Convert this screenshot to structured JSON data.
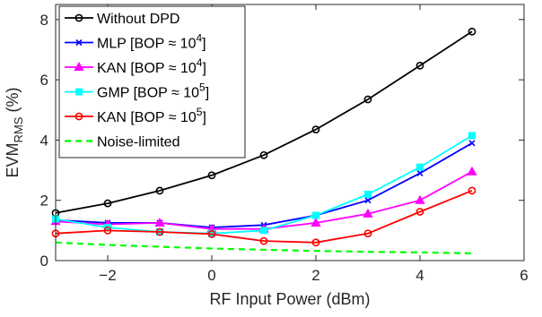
{
  "chart_data": {
    "type": "line",
    "xlabel": "RF Input Power (dBm)",
    "ylabel": {
      "main": "EVM",
      "sub": "RMS",
      "unit": " (%)"
    },
    "xlim": [
      -3,
      6
    ],
    "ylim": [
      0,
      8.5
    ],
    "xticks": [
      -2,
      0,
      2,
      4,
      6
    ],
    "yticks": [
      0,
      2,
      4,
      6,
      8
    ],
    "grid": false,
    "legend_position": "top-left",
    "x": [
      -3,
      -2,
      -1,
      0,
      1,
      2,
      3,
      4,
      5
    ],
    "series": [
      {
        "name": "Without DPD",
        "label_parts": [
          "Without DPD"
        ],
        "color": "#000000",
        "marker": "circle",
        "dashed": false,
        "values": [
          1.58,
          1.9,
          2.32,
          2.83,
          3.5,
          4.35,
          5.35,
          6.47,
          7.6
        ]
      },
      {
        "name": "MLP [BOP ≈ 10^4]",
        "label_parts": [
          "MLP [BOP ≈ 10",
          "4",
          "]"
        ],
        "color": "#0000ff",
        "marker": "x",
        "dashed": false,
        "values": [
          1.35,
          1.25,
          1.25,
          1.1,
          1.18,
          1.5,
          2.0,
          2.9,
          3.9
        ]
      },
      {
        "name": "KAN [BOP ≈ 10^4]",
        "label_parts": [
          "KAN [BOP ≈ 10",
          "4",
          "]"
        ],
        "color": "#ff00ff",
        "marker": "triangle",
        "dashed": false,
        "values": [
          1.3,
          1.2,
          1.25,
          1.05,
          1.05,
          1.25,
          1.55,
          2.0,
          2.95
        ]
      },
      {
        "name": "GMP [BOP ≈ 10^5]",
        "label_parts": [
          "GMP [BOP ≈ 10",
          "5",
          "]"
        ],
        "color": "#00ffff",
        "marker": "square",
        "dashed": false,
        "values": [
          1.38,
          1.1,
          0.95,
          0.9,
          1.0,
          1.5,
          2.2,
          3.1,
          4.15
        ]
      },
      {
        "name": "KAN [BOP ≈ 10^5]",
        "label_parts": [
          "KAN [BOP ≈ 10",
          "5",
          "]"
        ],
        "color": "#ff0000",
        "marker": "circle",
        "dashed": false,
        "values": [
          0.9,
          1.0,
          0.95,
          0.88,
          0.65,
          0.6,
          0.9,
          1.62,
          2.32
        ]
      },
      {
        "name": "Noise-limited",
        "label_parts": [
          "Noise-limited"
        ],
        "color": "#00ff00",
        "marker": "none",
        "dashed": true,
        "values": [
          0.6,
          0.52,
          0.46,
          0.4,
          0.36,
          0.32,
          0.29,
          0.27,
          0.24
        ]
      }
    ]
  }
}
